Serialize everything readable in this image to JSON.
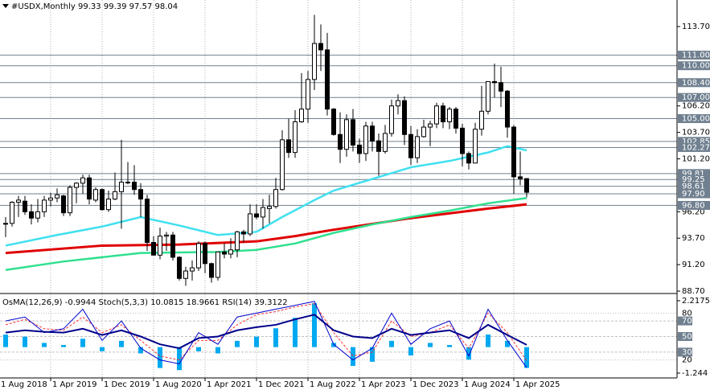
{
  "chart_data": {
    "type": "candlestick",
    "title": "#USDX,Monthly",
    "dates": [
      "2018-09-01",
      "2018-10-01",
      "2018-11-01",
      "2018-12-01",
      "2019-01-01",
      "2019-02-01",
      "2019-03-01",
      "2019-04-01",
      "2019-05-01",
      "2019-06-01",
      "2019-07-01",
      "2019-08-01",
      "2019-09-01",
      "2019-10-01",
      "2019-11-01",
      "2019-12-01",
      "2020-01-01",
      "2020-02-01",
      "2020-03-01",
      "2020-04-01",
      "2020-05-01",
      "2020-06-01",
      "2020-07-01",
      "2020-08-01",
      "2020-09-01",
      "2020-10-01",
      "2020-11-01",
      "2020-12-01",
      "2021-01-01",
      "2021-02-01",
      "2021-03-01",
      "2021-04-01",
      "2021-05-01",
      "2021-06-01",
      "2021-07-01",
      "2021-08-01",
      "2021-09-01",
      "2021-10-01",
      "2021-11-01",
      "2021-12-01",
      "2022-01-01",
      "2022-02-01",
      "2022-03-01",
      "2022-04-01",
      "2022-05-01",
      "2022-06-01",
      "2022-07-01",
      "2022-08-01",
      "2022-09-01",
      "2022-10-01",
      "2022-11-01",
      "2022-12-01",
      "2023-01-01",
      "2023-02-01",
      "2023-03-01",
      "2023-04-01",
      "2023-05-01",
      "2023-06-01",
      "2023-07-01",
      "2023-08-01",
      "2023-09-01",
      "2023-10-01",
      "2023-11-01",
      "2023-12-01",
      "2024-01-01",
      "2024-02-01",
      "2024-03-01",
      "2024-04-01",
      "2024-05-01",
      "2024-06-01",
      "2024-07-01",
      "2024-08-01",
      "2024-09-01",
      "2024-10-01",
      "2024-11-01",
      "2024-12-01",
      "2025-01-01",
      "2025-02-01",
      "2025-03-01",
      "2025-04-01",
      "2025-05-01",
      "2025-06-01"
    ],
    "open": [
      95.1,
      95.1,
      97.1,
      97.2,
      96.2,
      95.6,
      96.2,
      97.3,
      97.5,
      97.7,
      96.1,
      98.5,
      98.9,
      99.4,
      97.3,
      98.3,
      96.4,
      97.4,
      98.1,
      99.0,
      99.0,
      98.3,
      97.4,
      93.3,
      92.1,
      93.9,
      94.0,
      91.9,
      89.9,
      90.6,
      90.9,
      93.2,
      91.3,
      90.0,
      92.4,
      92.2,
      92.6,
      94.3,
      94.1,
      96.0,
      95.7,
      96.5,
      96.7,
      98.3,
      103.0,
      101.8,
      104.7,
      105.9,
      108.7,
      112.1,
      111.5,
      105.9,
      103.5,
      102.1,
      104.9,
      102.5,
      101.7,
      104.3,
      102.9,
      101.9,
      103.6,
      106.2,
      106.7,
      103.5,
      101.3,
      103.3,
      104.2,
      104.5,
      106.2,
      104.7,
      105.9,
      104.1,
      101.7,
      100.8,
      104.0,
      105.7,
      108.5,
      108.4,
      107.6,
      104.2,
      99.5,
      99.33
    ],
    "high": [
      95.7,
      97.2,
      97.7,
      97.7,
      96.9,
      97.4,
      97.7,
      98.0,
      98.4,
      97.8,
      98.7,
      99.0,
      99.7,
      99.7,
      98.5,
      98.4,
      98.2,
      99.9,
      103.0,
      100.9,
      100.6,
      98.9,
      97.8,
      93.9,
      94.7,
      94.3,
      94.3,
      92.0,
      91.0,
      91.6,
      93.4,
      93.4,
      91.4,
      92.4,
      93.2,
      93.7,
      94.4,
      94.5,
      96.9,
      96.9,
      97.4,
      97.8,
      99.4,
      103.9,
      105.0,
      105.8,
      109.3,
      109.5,
      114.8,
      113.9,
      113.1,
      106.0,
      105.6,
      105.4,
      105.9,
      103.1,
      104.7,
      104.7,
      103.6,
      104.4,
      106.8,
      107.3,
      107.1,
      104.3,
      104.0,
      104.9,
      104.8,
      106.5,
      106.5,
      106.1,
      106.1,
      104.5,
      101.9,
      104.6,
      108.1,
      108.5,
      110.2,
      109.9,
      107.7,
      104.4,
      101.9,
      99.39
    ],
    "low": [
      93.8,
      94.8,
      95.7,
      95.9,
      95.0,
      95.2,
      95.7,
      96.7,
      97.1,
      95.8,
      95.8,
      97.0,
      97.9,
      96.9,
      97.1,
      96.3,
      96.2,
      97.3,
      94.6,
      98.8,
      97.8,
      95.7,
      92.5,
      92.2,
      91.7,
      92.5,
      91.6,
      89.7,
      89.2,
      89.7,
      90.6,
      90.4,
      89.5,
      89.7,
      91.8,
      91.8,
      91.9,
      93.3,
      93.9,
      95.5,
      94.6,
      95.1,
      96.5,
      98.2,
      101.3,
      101.3,
      104.6,
      104.6,
      107.7,
      109.5,
      105.3,
      103.4,
      100.8,
      101.4,
      101.9,
      100.8,
      101.0,
      101.9,
      99.6,
      101.7,
      103.3,
      105.4,
      102.5,
      100.6,
      100.8,
      103.2,
      102.4,
      104.1,
      104.1,
      104.0,
      103.6,
      100.5,
      100.2,
      100.8,
      103.4,
      105.4,
      107.0,
      106.1,
      103.2,
      97.9,
      98.7,
      97.57
    ],
    "close": [
      95.1,
      97.1,
      97.3,
      96.2,
      95.6,
      96.2,
      97.3,
      97.5,
      97.8,
      96.1,
      98.5,
      98.9,
      99.4,
      97.4,
      98.3,
      96.4,
      97.4,
      98.1,
      99.0,
      99.0,
      98.3,
      97.4,
      93.3,
      92.1,
      93.9,
      94.0,
      91.9,
      89.9,
      90.6,
      90.9,
      93.2,
      91.3,
      90.0,
      92.4,
      92.2,
      92.6,
      94.3,
      94.1,
      96.0,
      95.7,
      96.6,
      96.7,
      98.3,
      103.0,
      101.8,
      104.7,
      105.9,
      108.7,
      112.1,
      111.5,
      105.9,
      103.5,
      102.1,
      104.9,
      102.5,
      101.7,
      104.3,
      102.9,
      101.9,
      103.6,
      106.2,
      106.7,
      103.5,
      101.3,
      103.3,
      104.2,
      104.5,
      106.2,
      104.7,
      105.9,
      104.1,
      101.7,
      100.8,
      104.0,
      105.7,
      108.5,
      108.4,
      107.6,
      104.2,
      99.5,
      99.33,
      98.04
    ],
    "bull_color": "#ffffff",
    "bear_color": "#000000",
    "moving_averages": [
      {
        "color": "#40e0f0",
        "x": [
          "2018-09-01",
          "2019-05-01",
          "2019-12-01",
          "2020-06-01",
          "2020-12-01",
          "2021-06-01",
          "2021-12-01",
          "2022-04-01",
          "2022-09-01",
          "2022-12-01",
          "2023-06-01",
          "2023-12-01",
          "2024-06-01",
          "2024-12-01",
          "2025-03-01",
          "2025-06-01"
        ],
        "values": [
          93.0,
          94.0,
          94.8,
          95.7,
          94.9,
          94.0,
          94.3,
          95.7,
          97.3,
          98.2,
          99.3,
          100.4,
          101.0,
          101.8,
          102.4,
          102.0
        ]
      },
      {
        "color": "#e00000",
        "x": [
          "2018-09-01",
          "2019-12-01",
          "2020-12-01",
          "2021-12-01",
          "2022-06-01",
          "2022-12-01",
          "2023-12-01",
          "2024-12-01",
          "2025-06-01"
        ],
        "values": [
          92.3,
          93.0,
          93.1,
          93.4,
          93.9,
          94.5,
          95.6,
          96.5,
          96.9
        ]
      },
      {
        "color": "#30e090",
        "x": [
          "2018-09-01",
          "2019-06-01",
          "2020-06-01",
          "2021-06-01",
          "2021-12-01",
          "2022-06-01",
          "2022-12-01",
          "2023-06-01",
          "2023-12-01",
          "2024-06-01",
          "2024-12-01",
          "2025-06-01"
        ],
        "values": [
          90.7,
          91.5,
          92.3,
          92.4,
          92.6,
          93.2,
          94.2,
          95.0,
          95.7,
          96.3,
          97.0,
          97.5
        ]
      }
    ],
    "levels": [
      {
        "value": 111,
        "label": "111.00"
      },
      {
        "value": 110,
        "label": "110.00"
      },
      {
        "value": 108.4,
        "label": "108.40"
      },
      {
        "value": 107,
        "label": "107.00"
      },
      {
        "value": 105,
        "label": "105.00"
      },
      {
        "value": 102.85,
        "label": "102.85"
      },
      {
        "value": 102.27,
        "label": "102.27"
      },
      {
        "value": 99.81,
        "label": "99.81"
      },
      {
        "value": 99.25,
        "label": "99.25"
      },
      {
        "value": 98.61,
        "label": "98.61"
      },
      {
        "value": 97.9,
        "label": "97.90"
      },
      {
        "value": 96.8,
        "label": "96.80"
      }
    ],
    "level_color": "#708090",
    "ylim": [
      88.55,
      116.21
    ],
    "yticks": [
      {
        "value": 113.7,
        "label": "113.70"
      },
      {
        "value": 106.2,
        "label": "106.20"
      },
      {
        "value": 103.7,
        "label": "103.70"
      },
      {
        "value": 101.2,
        "label": "101.20"
      },
      {
        "value": 96.2,
        "label": "96.20"
      },
      {
        "value": 93.7,
        "label": "93.70"
      },
      {
        "value": 91.2,
        "label": "91.20"
      },
      {
        "value": 88.7,
        "label": "88.70"
      }
    ],
    "xticks": [
      {
        "value": "2018-08-01",
        "label": "1 Aug 2018"
      },
      {
        "value": "2019-04-01",
        "label": "1 Apr 2019"
      },
      {
        "value": "2019-12-01",
        "label": "1 Dec 2019"
      },
      {
        "value": "2020-08-01",
        "label": "1 Aug 2020"
      },
      {
        "value": "2021-04-01",
        "label": "1 Apr 2021"
      },
      {
        "value": "2021-12-01",
        "label": "1 Dec 2021"
      },
      {
        "value": "2022-08-01",
        "label": "1 Aug 2022"
      },
      {
        "value": "2023-04-01",
        "label": "1 Apr 2023"
      },
      {
        "value": "2023-12-01",
        "label": "1 Dec 2023"
      },
      {
        "value": "2024-08-01",
        "label": "1 Aug 2024"
      },
      {
        "value": "2025-04-01",
        "label": "1 Apr 2025"
      }
    ]
  },
  "indicator_chart": {
    "type": "oscillator",
    "x": [
      "2018-09-01",
      "2018-12-01",
      "2019-03-01",
      "2019-06-01",
      "2019-09-01",
      "2019-12-01",
      "2020-03-01",
      "2020-06-01",
      "2020-09-01",
      "2020-12-01",
      "2021-03-01",
      "2021-06-01",
      "2021-09-01",
      "2021-12-01",
      "2022-03-01",
      "2022-06-01",
      "2022-09-01",
      "2022-12-01",
      "2023-03-01",
      "2023-06-01",
      "2023-09-01",
      "2023-12-01",
      "2024-03-01",
      "2024-06-01",
      "2024-09-01",
      "2024-12-01",
      "2025-03-01",
      "2025-06-01"
    ],
    "osma": {
      "label": "OsMA(12,26,9)",
      "color": "#00a8f0",
      "values": [
        0.6,
        0.5,
        0.2,
        0.1,
        0.4,
        -0.2,
        0.3,
        -0.3,
        -1.0,
        -1.1,
        -0.2,
        -0.3,
        0.3,
        0.5,
        0.9,
        1.4,
        2.1,
        0.2,
        -0.9,
        -0.7,
        0.3,
        -0.4,
        0.2,
        0.1,
        -0.6,
        0.6,
        0.3,
        -0.9944
      ]
    },
    "stochastic": {
      "label": "Stoch(5,3,3)",
      "main_color": "#0000cd",
      "signal_color": "#ff3030",
      "main": [
        70,
        75,
        55,
        60,
        85,
        45,
        70,
        35,
        20,
        15,
        55,
        40,
        75,
        80,
        85,
        90,
        95,
        40,
        20,
        35,
        80,
        40,
        60,
        70,
        25,
        85,
        45,
        10.0815
      ],
      "signal": [
        65,
        72,
        60,
        58,
        75,
        55,
        65,
        45,
        25,
        20,
        45,
        45,
        65,
        78,
        82,
        88,
        92,
        55,
        25,
        30,
        70,
        50,
        55,
        65,
        35,
        80,
        55,
        18.9661
      ]
    },
    "rsi": {
      "label": "RSI(14)",
      "color": "#00008b",
      "values": [
        55,
        58,
        56,
        55,
        60,
        52,
        58,
        50,
        40,
        35,
        48,
        50,
        58,
        62,
        65,
        72,
        78,
        58,
        50,
        48,
        60,
        52,
        55,
        58,
        48,
        65,
        52,
        39.3122
      ]
    },
    "osma_lim": [
      -1.244,
      2.2175
    ],
    "osma_ticks": [
      2.2175,
      -1.244
    ],
    "lim": [
      0,
      100
    ],
    "ticks": [
      80,
      20
    ],
    "levels": [
      70,
      50,
      30
    ],
    "level_color": "#708090"
  }
}
